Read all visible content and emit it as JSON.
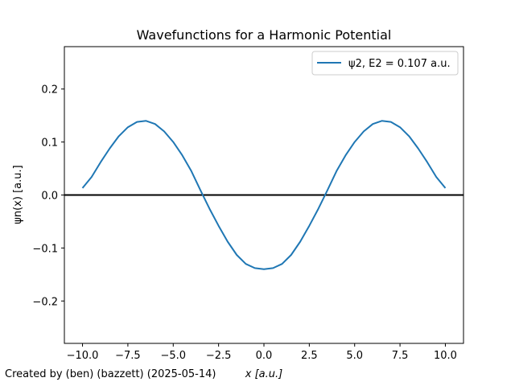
{
  "chart_data": {
    "type": "line",
    "title": "Wavefunctions for a Harmonic Potential",
    "xlabel": "x [a.u.]",
    "ylabel": "ψn(x) [a.u.]",
    "xlim": [
      -11.0,
      11.0
    ],
    "ylim": [
      -0.28,
      0.28
    ],
    "xticks": [
      -10.0,
      -7.5,
      -5.0,
      -2.5,
      0.0,
      2.5,
      5.0,
      7.5,
      10.0
    ],
    "xtick_labels": [
      "−10.0",
      "−7.5",
      "−5.0",
      "−2.5",
      "0.0",
      "2.5",
      "5.0",
      "7.5",
      "10.0"
    ],
    "yticks": [
      -0.2,
      -0.1,
      0.0,
      0.1,
      0.2
    ],
    "ytick_labels": [
      "−0.2",
      "−0.1",
      "0.0",
      "0.1",
      "0.2"
    ],
    "grid": false,
    "legend_position": "top-right",
    "reference_line": {
      "y": 0.0,
      "color": "#000000"
    },
    "series": [
      {
        "name": "ψ2, E2 = 0.107 a.u.",
        "color": "#1f77b4",
        "x": [
          -10.0,
          -9.5,
          -9.0,
          -8.5,
          -8.0,
          -7.5,
          -7.0,
          -6.5,
          -6.0,
          -5.5,
          -5.0,
          -4.5,
          -4.0,
          -3.5,
          -3.0,
          -2.5,
          -2.0,
          -1.5,
          -1.0,
          -0.5,
          0.0,
          0.5,
          1.0,
          1.5,
          2.0,
          2.5,
          3.0,
          3.5,
          4.0,
          4.5,
          5.0,
          5.5,
          6.0,
          6.5,
          7.0,
          7.5,
          8.0,
          8.5,
          9.0,
          9.5,
          10.0
        ],
        "y": [
          0.013,
          0.034,
          0.062,
          0.088,
          0.111,
          0.128,
          0.138,
          0.14,
          0.134,
          0.12,
          0.1,
          0.075,
          0.045,
          0.009,
          -0.026,
          -0.058,
          -0.088,
          -0.113,
          -0.13,
          -0.138,
          -0.14,
          -0.138,
          -0.13,
          -0.113,
          -0.088,
          -0.058,
          -0.026,
          0.009,
          0.045,
          0.075,
          0.1,
          0.12,
          0.134,
          0.14,
          0.138,
          0.128,
          0.111,
          0.088,
          0.062,
          0.034,
          0.013
        ]
      }
    ]
  },
  "footer": {
    "text": "Created by (ben) (bazzett) (2025-05-14)"
  }
}
